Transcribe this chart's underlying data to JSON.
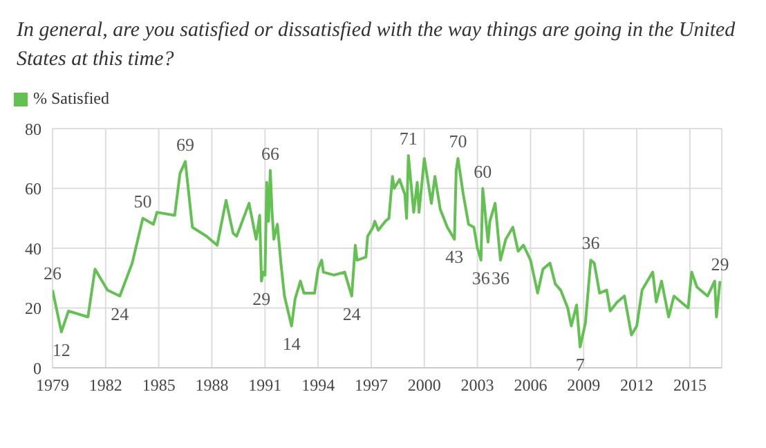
{
  "chart_data": {
    "type": "line",
    "title": "In general, are you satisfied or dissatisfied with the way things are going in the United States at this time?",
    "series": [
      {
        "name": "% Satisfied",
        "color": "#63c152",
        "x": [
          1979.0,
          1979.5,
          1979.9,
          1981.0,
          1981.4,
          1982.1,
          1982.8,
          1983.5,
          1984.1,
          1984.7,
          1984.9,
          1985.9,
          1986.2,
          1986.5,
          1986.9,
          1987.7,
          1988.3,
          1988.8,
          1989.2,
          1989.4,
          1990.1,
          1990.5,
          1990.7,
          1990.8,
          1990.9,
          1991.0,
          1991.1,
          1991.2,
          1991.3,
          1991.4,
          1991.5,
          1991.7,
          1991.9,
          1992.1,
          1992.3,
          1992.5,
          1992.7,
          1993.0,
          1993.2,
          1993.8,
          1994.0,
          1994.2,
          1994.3,
          1994.9,
          1995.5,
          1995.9,
          1996.1,
          1996.2,
          1996.7,
          1996.8,
          1997.1,
          1997.2,
          1997.4,
          1997.8,
          1998.0,
          1998.2,
          1998.3,
          1998.6,
          1998.9,
          1999.0,
          1999.1,
          1999.4,
          1999.6,
          1999.7,
          2000.0,
          2000.4,
          2000.6,
          2000.9,
          2001.3,
          2001.7,
          2001.8,
          2001.9,
          2002.2,
          2002.5,
          2002.8,
          2003.0,
          2003.2,
          2003.3,
          2003.6,
          2003.7,
          2004.0,
          2004.3,
          2004.6,
          2005.0,
          2005.3,
          2005.6,
          2006.0,
          2006.4,
          2006.7,
          2007.1,
          2007.4,
          2007.7,
          2008.1,
          2008.3,
          2008.6,
          2008.8,
          2009.1,
          2009.4,
          2009.6,
          2009.9,
          2010.3,
          2010.5,
          2010.9,
          2011.3,
          2011.7,
          2012.0,
          2012.3,
          2012.6,
          2012.9,
          2013.1,
          2013.4,
          2013.8,
          2014.1,
          2014.9,
          2015.1,
          2015.4,
          2016.0,
          2016.4,
          2016.5,
          2016.7
        ],
        "values": [
          26,
          12,
          19,
          17,
          33,
          26,
          24,
          35,
          50,
          48,
          52,
          51,
          65,
          69,
          47,
          44,
          41,
          56,
          45,
          44,
          55,
          43,
          51,
          29,
          32,
          31,
          62,
          49,
          66,
          52,
          43,
          48,
          35,
          24,
          19,
          14,
          23,
          29,
          25,
          25,
          33,
          36,
          32,
          31,
          32,
          24,
          41,
          36,
          37,
          44,
          47,
          49,
          46,
          49,
          50,
          64,
          60,
          63,
          58,
          50,
          71,
          52,
          62,
          52,
          70,
          55,
          64,
          53,
          47,
          43,
          66,
          70,
          58,
          48,
          47,
          40,
          36,
          60,
          42,
          49,
          55,
          36,
          43,
          47,
          39,
          41,
          36,
          25,
          33,
          35,
          28,
          26,
          20,
          14,
          21,
          7,
          15,
          36,
          35,
          25,
          26,
          19,
          22,
          24,
          11,
          14,
          26,
          29,
          32,
          22,
          29,
          17,
          24,
          20,
          32,
          27,
          24,
          29,
          17,
          29
        ]
      }
    ],
    "xlim": [
      1979,
      2016.8
    ],
    "xticks": [
      1979,
      1982,
      1985,
      1988,
      1991,
      1994,
      1997,
      2000,
      2003,
      2006,
      2009,
      2012,
      2015
    ],
    "ylim": [
      0,
      80
    ],
    "yticks": [
      0,
      20,
      40,
      60,
      80
    ],
    "grid": true,
    "legend": "top left",
    "marker": "none",
    "line_style": "solid",
    "annotations": [
      {
        "text": "26",
        "x": 1979.0,
        "y": 26
      },
      {
        "text": "12",
        "x": 1979.5,
        "y": 12
      },
      {
        "text": "24",
        "x": 1982.8,
        "y": 24
      },
      {
        "text": "50",
        "x": 1984.1,
        "y": 50
      },
      {
        "text": "69",
        "x": 1986.5,
        "y": 69
      },
      {
        "text": "29",
        "x": 1990.8,
        "y": 29
      },
      {
        "text": "66",
        "x": 1991.3,
        "y": 66
      },
      {
        "text": "14",
        "x": 1992.5,
        "y": 14
      },
      {
        "text": "24",
        "x": 1995.9,
        "y": 24
      },
      {
        "text": "71",
        "x": 1999.1,
        "y": 71
      },
      {
        "text": "43",
        "x": 2001.7,
        "y": 43
      },
      {
        "text": "70",
        "x": 2001.9,
        "y": 70
      },
      {
        "text": "36",
        "x": 2003.2,
        "y": 36
      },
      {
        "text": "60",
        "x": 2003.3,
        "y": 60
      },
      {
        "text": "36",
        "x": 2004.3,
        "y": 36
      },
      {
        "text": "7",
        "x": 2008.8,
        "y": 7
      },
      {
        "text": "36",
        "x": 2009.4,
        "y": 36
      },
      {
        "text": "29",
        "x": 2016.7,
        "y": 29
      }
    ]
  }
}
